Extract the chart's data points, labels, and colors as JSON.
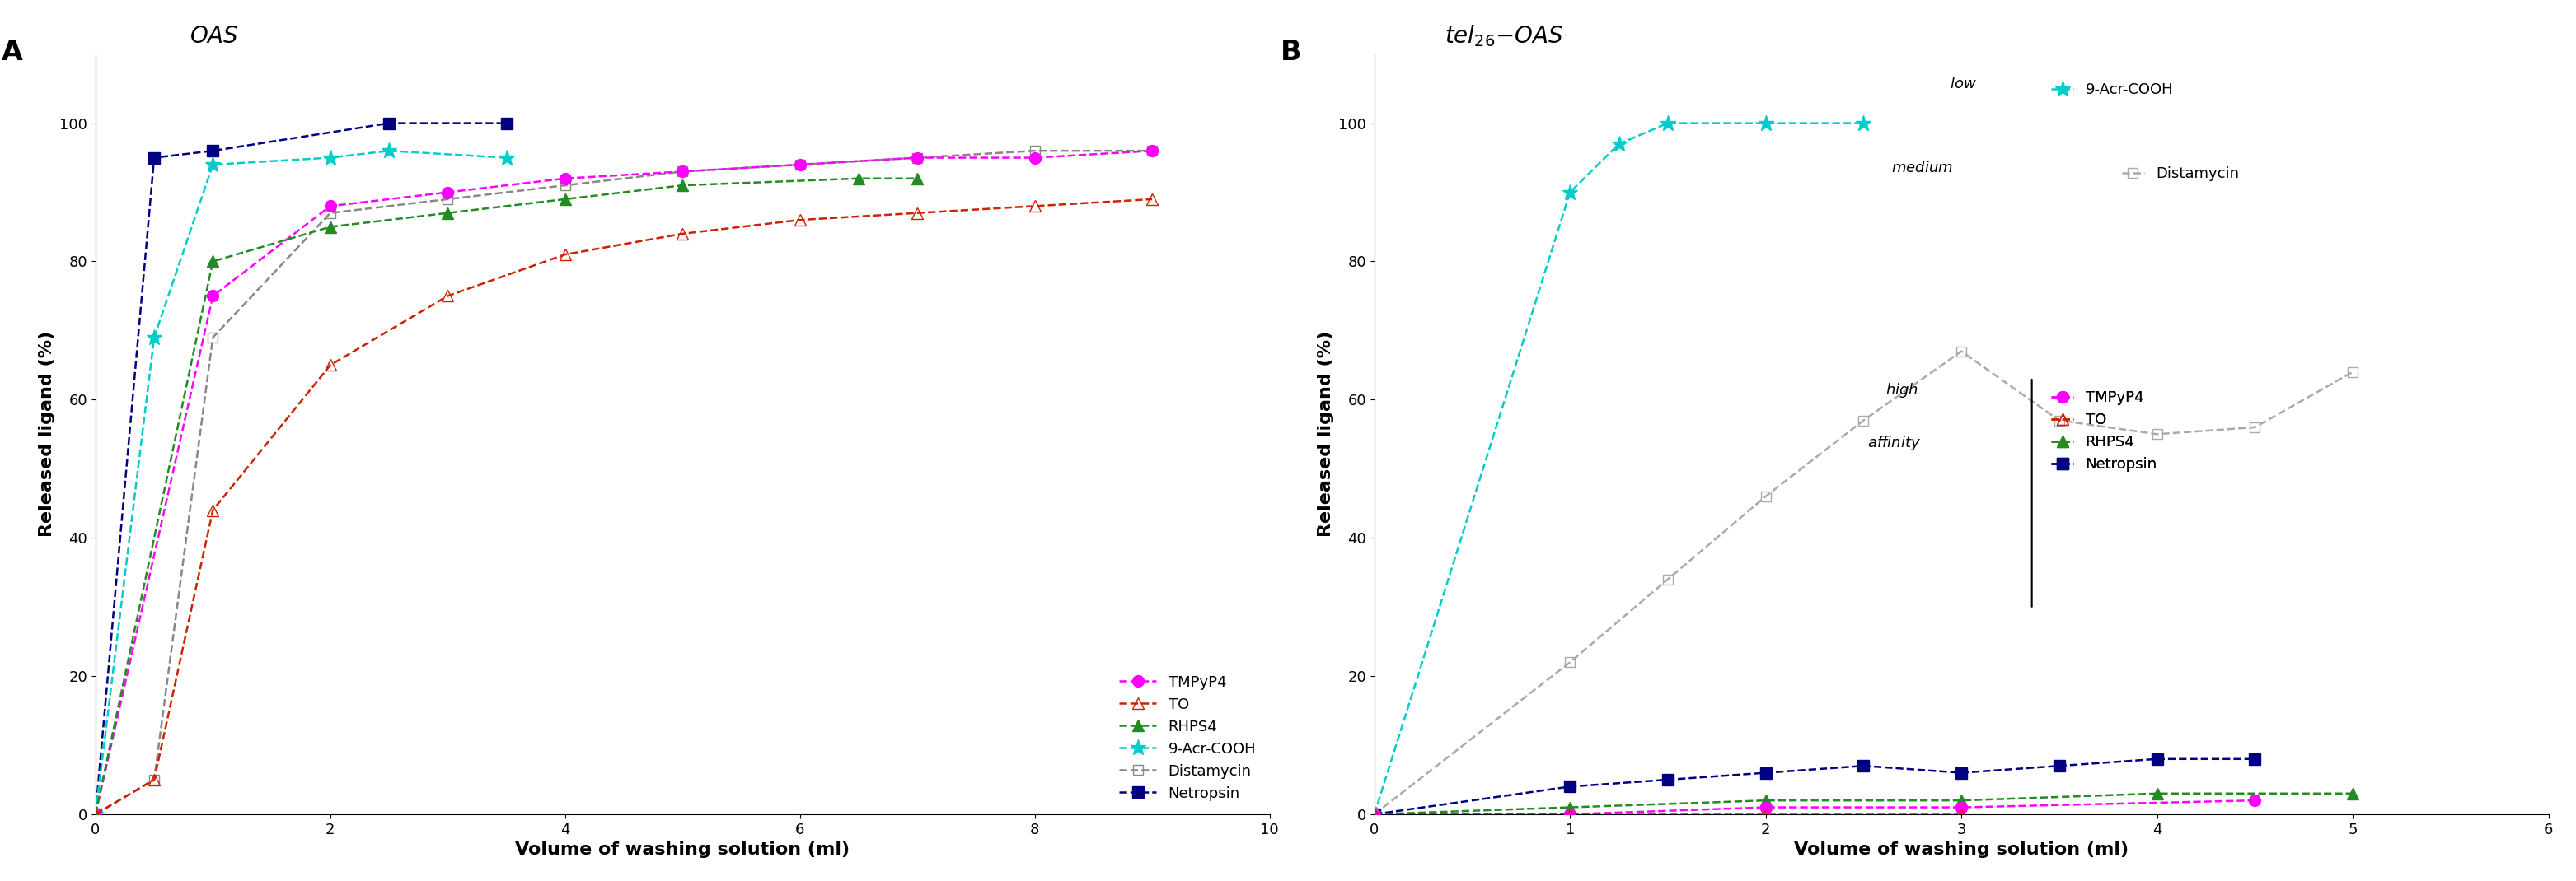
{
  "panel_A": {
    "title": "OAS",
    "xlabel": "Volume of washing solution (ml)",
    "ylabel": "Released ligand (%)",
    "xlim": [
      0,
      10.0
    ],
    "ylim": [
      0,
      110
    ],
    "xticks": [
      0.0,
      2.0,
      4.0,
      6.0,
      8.0,
      10.0
    ],
    "yticks": [
      0,
      20,
      40,
      60,
      80,
      100
    ],
    "series": {
      "TMPyP4": {
        "x": [
          0.0,
          1.0,
          2.0,
          3.0,
          4.0,
          5.0,
          6.0,
          7.0,
          8.0,
          9.0
        ],
        "y": [
          0,
          75,
          88,
          90,
          92,
          93,
          94,
          95,
          95,
          96
        ],
        "color": "#FF00FF",
        "marker": "o",
        "markerfill": "#FF00FF",
        "linestyle": "--",
        "markersize": 10
      },
      "TO": {
        "x": [
          0.0,
          0.5,
          1.0,
          2.0,
          3.0,
          4.0,
          5.0,
          6.0,
          7.0,
          8.0,
          9.0
        ],
        "y": [
          0,
          5,
          44,
          65,
          75,
          81,
          84,
          86,
          87,
          88,
          89
        ],
        "color": "#CC2200",
        "marker": "^",
        "markerfill": "none",
        "linestyle": "--",
        "markersize": 10
      },
      "RHPS4": {
        "x": [
          0.0,
          1.0,
          2.0,
          3.0,
          4.0,
          5.0,
          6.5,
          7.0
        ],
        "y": [
          0,
          80,
          85,
          87,
          89,
          91,
          92,
          92
        ],
        "color": "#228B22",
        "marker": "^",
        "markerfill": "#228B22",
        "linestyle": "--",
        "markersize": 10
      },
      "9-Acr-COOH": {
        "x": [
          0.0,
          0.5,
          1.0,
          2.0,
          2.5,
          3.5
        ],
        "y": [
          0,
          69,
          94,
          95,
          96,
          95
        ],
        "color": "#00CCCC",
        "marker": "*",
        "markerfill": "#00CCCC",
        "linestyle": "--",
        "markersize": 14
      },
      "Distamycin": {
        "x": [
          0.0,
          0.5,
          1.0,
          2.0,
          3.0,
          4.0,
          5.0,
          6.0,
          7.0,
          8.0,
          9.0
        ],
        "y": [
          0,
          5,
          69,
          87,
          89,
          91,
          93,
          94,
          95,
          96,
          96
        ],
        "color": "#888888",
        "marker": "s",
        "markerfill": "none",
        "linestyle": "--",
        "markersize": 9
      },
      "Netropsin": {
        "x": [
          0.0,
          0.5,
          1.0,
          2.5,
          3.5
        ],
        "y": [
          0,
          95,
          96,
          100,
          100
        ],
        "color": "#000080",
        "marker": "s",
        "markerfill": "#000080",
        "linestyle": "--",
        "markersize": 10
      }
    }
  },
  "panel_B": {
    "xlabel": "Volume of washing solution (ml)",
    "ylabel": "Released ligand (%)",
    "xlim": [
      0,
      6.0
    ],
    "ylim": [
      0,
      110
    ],
    "xticks": [
      0.0,
      1.0,
      2.0,
      3.0,
      4.0,
      5.0,
      6.0
    ],
    "yticks": [
      0,
      20,
      40,
      60,
      80,
      100
    ],
    "series": {
      "9-Acr-COOH": {
        "x": [
          0.0,
          1.0,
          1.25,
          1.5,
          2.0,
          2.5
        ],
        "y": [
          0,
          90,
          97,
          100,
          100,
          100
        ],
        "color": "#00CCCC",
        "marker": "*",
        "markerfill": "#00CCCC",
        "linestyle": "--",
        "markersize": 14
      },
      "Distamycin": {
        "x": [
          0.0,
          1.0,
          1.5,
          2.0,
          2.5,
          3.0,
          3.5,
          4.0,
          4.5,
          5.0
        ],
        "y": [
          0,
          22,
          34,
          46,
          57,
          67,
          57,
          55,
          56,
          64
        ],
        "color": "#AAAAAA",
        "marker": "s",
        "markerfill": "none",
        "linestyle": "--",
        "markersize": 9
      },
      "TMPyP4": {
        "x": [
          0.0,
          1.0,
          2.0,
          3.0,
          4.5
        ],
        "y": [
          0,
          0,
          1,
          1,
          2
        ],
        "color": "#FF00FF",
        "marker": "o",
        "markerfill": "#FF00FF",
        "linestyle": "--",
        "markersize": 10
      },
      "TO": {
        "x": [
          0.0,
          1.0,
          2.0,
          3.0
        ],
        "y": [
          0,
          0,
          0,
          0
        ],
        "color": "#CC2200",
        "marker": "^",
        "markerfill": "none",
        "linestyle": "--",
        "markersize": 10
      },
      "RHPS4": {
        "x": [
          0.0,
          1.0,
          2.0,
          3.0,
          4.0,
          5.0
        ],
        "y": [
          0,
          1,
          2,
          2,
          3,
          3
        ],
        "color": "#228B22",
        "marker": "^",
        "markerfill": "#228B22",
        "linestyle": "--",
        "markersize": 10
      },
      "Netropsin": {
        "x": [
          0.0,
          1.0,
          1.5,
          2.0,
          2.5,
          3.0,
          3.5,
          4.0,
          4.5
        ],
        "y": [
          0,
          4,
          5,
          6,
          7,
          6,
          7,
          8,
          8
        ],
        "color": "#000080",
        "marker": "s",
        "markerfill": "#000080",
        "linestyle": "--",
        "markersize": 10
      }
    }
  },
  "background_color": "#ffffff",
  "label_A": "A",
  "label_B": "B"
}
